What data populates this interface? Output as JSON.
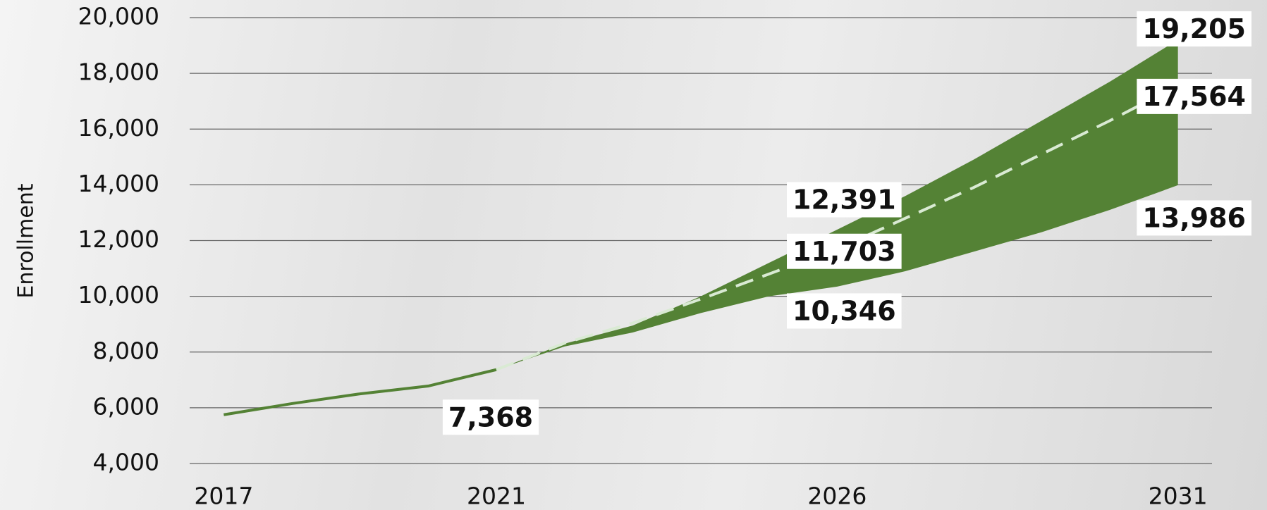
{
  "chart_data": {
    "type": "line",
    "ylabel": "Enrollment",
    "x": [
      2017,
      2018,
      2019,
      2020,
      2021,
      2022,
      2023,
      2024,
      2025,
      2026,
      2027,
      2028,
      2029,
      2030,
      2031
    ],
    "xlim": [
      2016.5,
      2031.5
    ],
    "xticks": [
      2017,
      2021,
      2026,
      2031
    ],
    "ylim": [
      4000,
      20000
    ],
    "yticks": [
      {
        "value": 4000,
        "label": "4,000"
      },
      {
        "value": 6000,
        "label": "6,000"
      },
      {
        "value": 8000,
        "label": "8,000"
      },
      {
        "value": 10000,
        "label": "10,000"
      },
      {
        "value": 12000,
        "label": "12,000"
      },
      {
        "value": 14000,
        "label": "14,000"
      },
      {
        "value": 16000,
        "label": "16,000"
      },
      {
        "value": 18000,
        "label": "18,000"
      },
      {
        "value": 20000,
        "label": "20,000"
      }
    ],
    "grid": true,
    "history": {
      "color": "#548235",
      "values": [
        5750,
        6150,
        6500,
        6780,
        7368,
        null,
        null,
        null,
        null,
        null,
        null,
        null,
        null,
        null,
        null
      ],
      "value_labels": [
        null,
        null,
        null,
        null,
        "7,368",
        null,
        null,
        null,
        null,
        null,
        null,
        null,
        null,
        null,
        null
      ]
    },
    "projection": {
      "color": "#d9ead3",
      "values": [
        null,
        null,
        null,
        null,
        7368,
        8320,
        9040,
        9900,
        10800,
        11703,
        12800,
        13900,
        15100,
        16300,
        17564
      ],
      "value_labels": [
        null,
        null,
        null,
        null,
        null,
        null,
        null,
        null,
        null,
        "11,703",
        null,
        null,
        null,
        null,
        "17,564"
      ]
    },
    "upper": {
      "color": "#548235",
      "values": [
        null,
        null,
        null,
        null,
        7368,
        8300,
        8950,
        10000,
        11200,
        12391,
        13600,
        14900,
        16300,
        17700,
        19205
      ],
      "value_labels": [
        null,
        null,
        null,
        null,
        null,
        null,
        null,
        null,
        null,
        "12,391",
        null,
        null,
        null,
        null,
        "19,205"
      ]
    },
    "lower": {
      "color": "#548235",
      "values": [
        null,
        null,
        null,
        null,
        7368,
        8200,
        8700,
        9400,
        10000,
        10346,
        10900,
        11600,
        12300,
        13100,
        13986
      ],
      "value_labels": [
        null,
        null,
        null,
        null,
        null,
        null,
        null,
        null,
        null,
        "10,346",
        null,
        null,
        null,
        null,
        "13,986"
      ]
    }
  }
}
